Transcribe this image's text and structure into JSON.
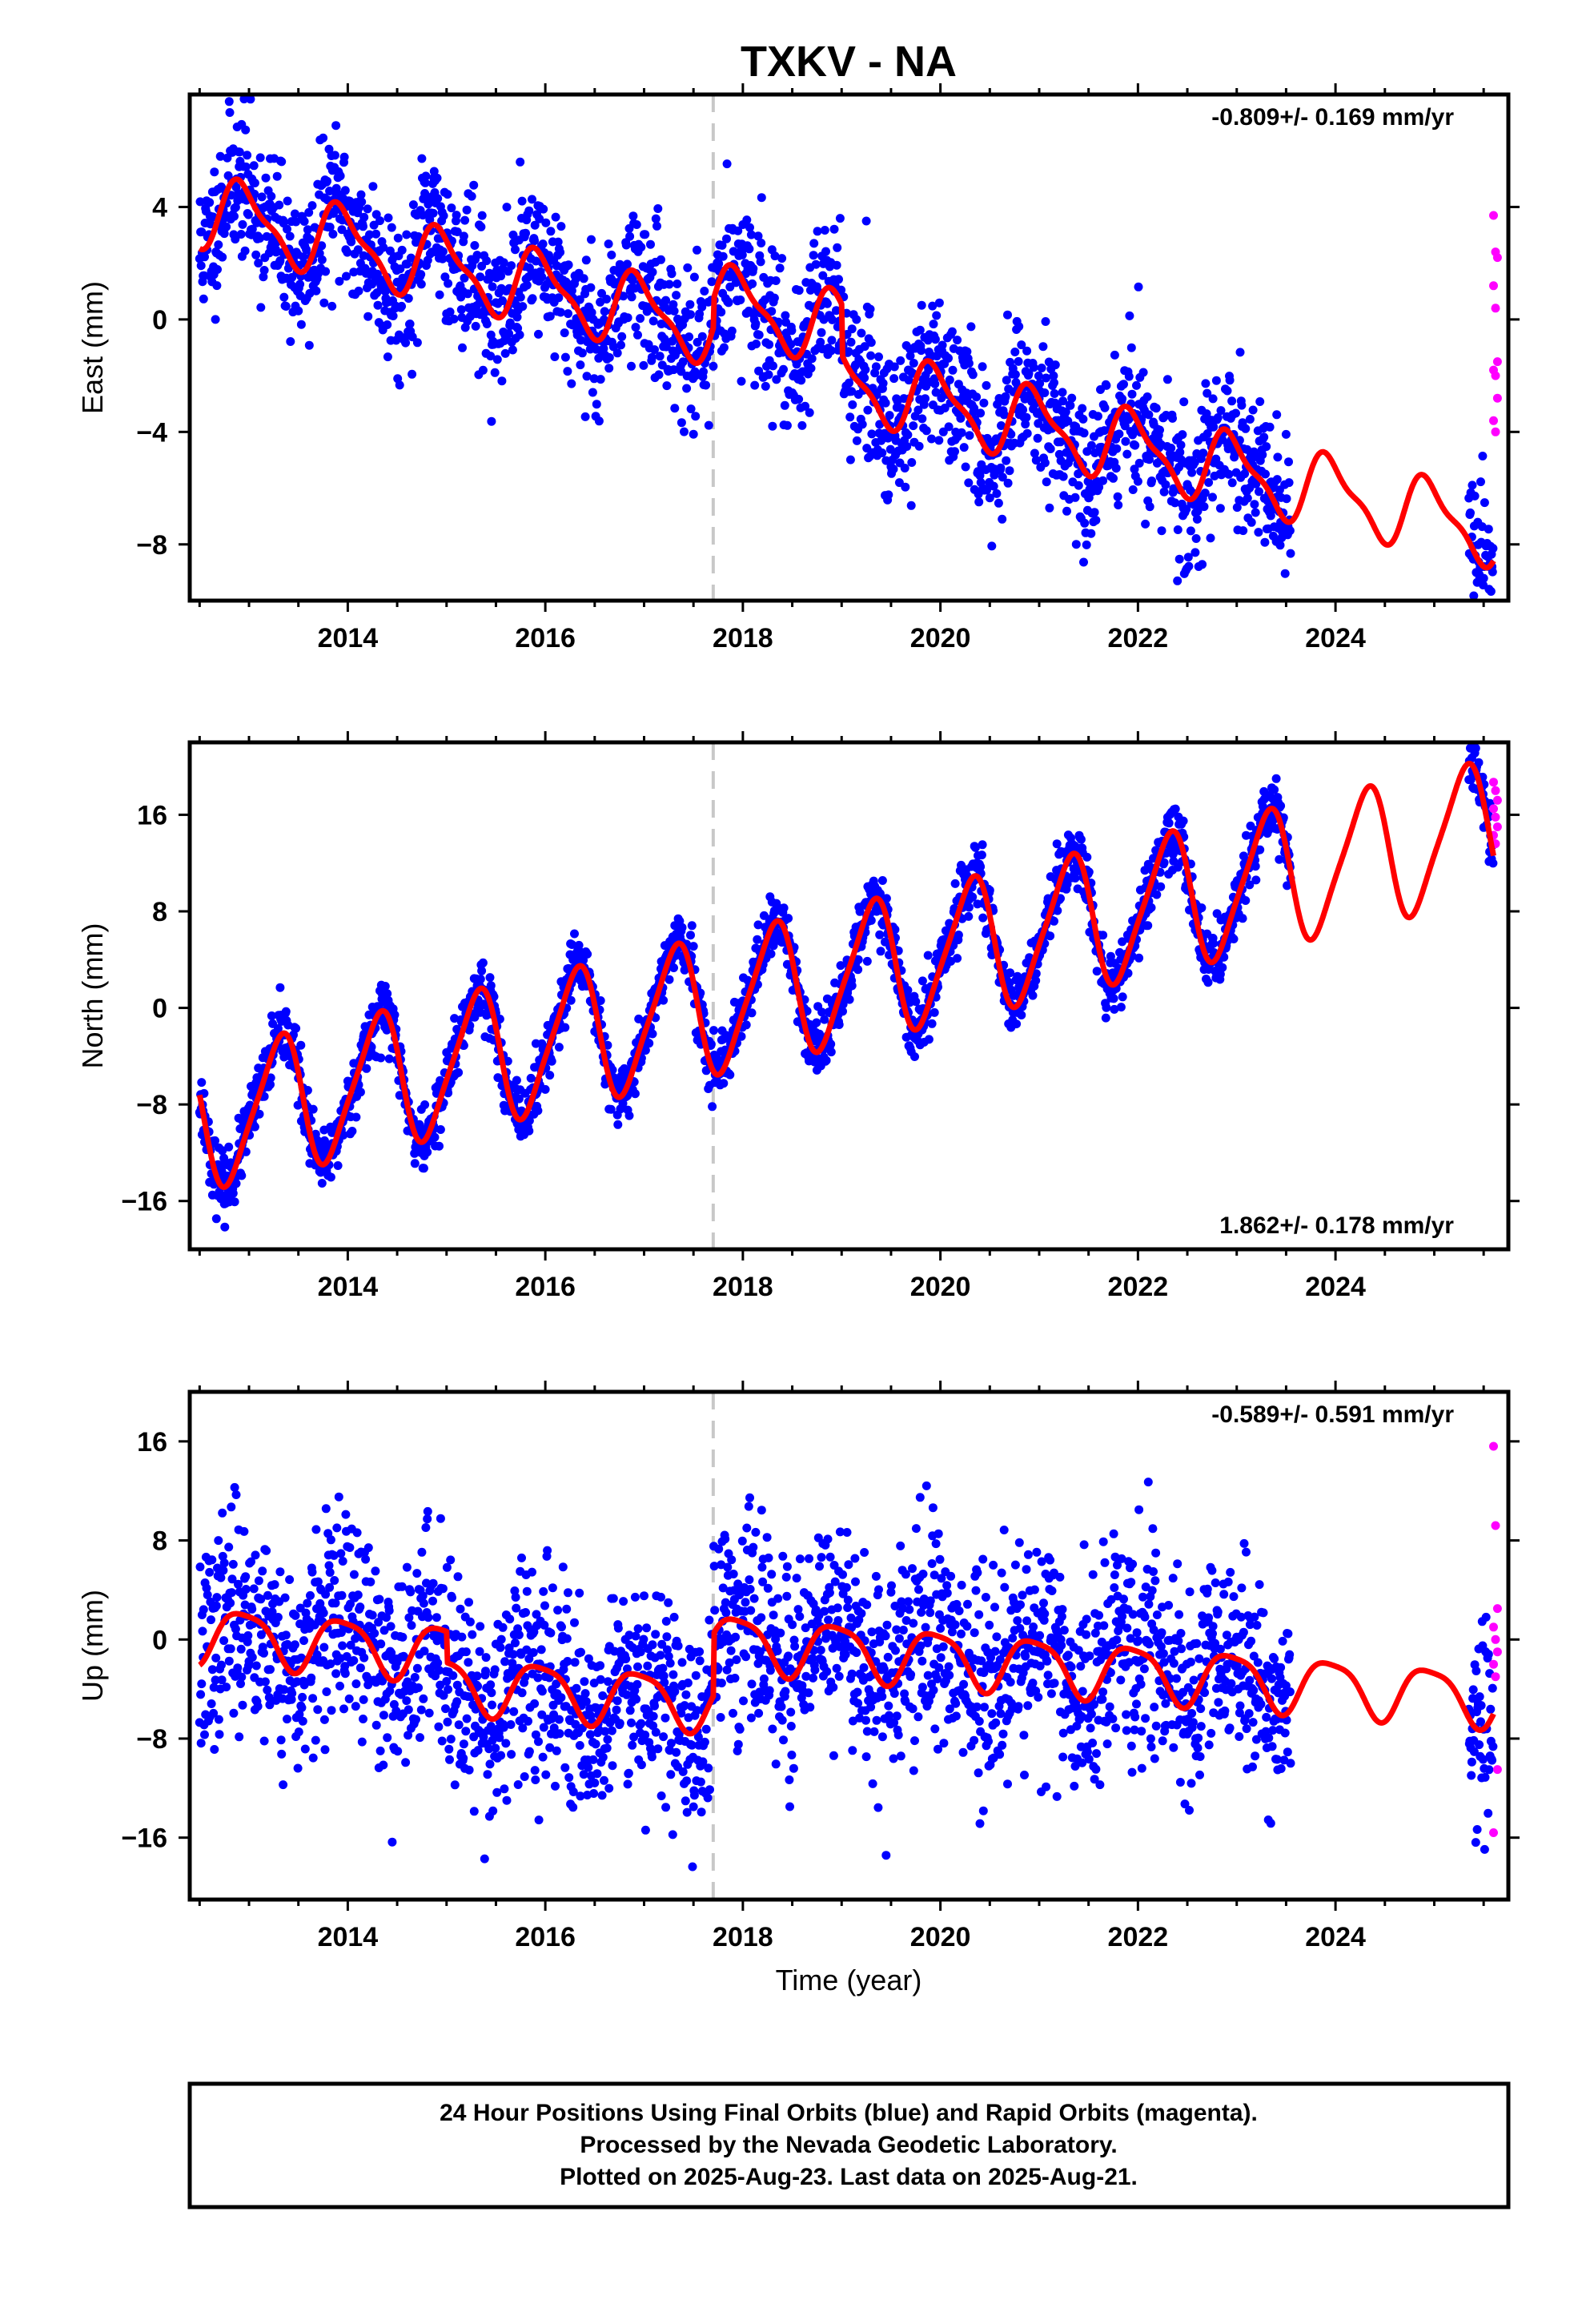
{
  "title": "TXKV - NA",
  "xlabel": "Time (year)",
  "colors": {
    "final_orbits": "#0000ff",
    "rapid_orbits": "#ff00ff",
    "model": "#ff0000",
    "equipment_change": "#c8c8c8"
  },
  "footer": {
    "line1": "24 Hour Positions Using Final Orbits (blue) and Rapid Orbits (magenta).",
    "line2": "Processed by the Nevada Geodetic Laboratory.",
    "line3": "Plotted on 2025-Aug-23. Last data on 2025-Aug-21."
  },
  "chart_data": [
    {
      "type": "scatter",
      "component": "east",
      "ylabel": "East (mm)",
      "rate": "-0.809+/- 0.169 mm/yr",
      "rate_position": "top-right",
      "xlim": [
        2012.4,
        2025.75
      ],
      "ylim": [
        -10,
        8
      ],
      "xticks": [
        2014,
        2016,
        2018,
        2020,
        2022,
        2024
      ],
      "xtick_labels": [
        "2014",
        "2016",
        "2018",
        "2020",
        "2022",
        "2024"
      ],
      "yticks": [
        4,
        0,
        -4,
        -8
      ],
      "ytick_labels": [
        "4",
        "0",
        "−4",
        "−8"
      ],
      "equipment_change_year": 2017.7,
      "model": {
        "offset": 3.9,
        "slope": -0.809,
        "ref_year": 2012.5,
        "annual_amp": 1.2,
        "annual_phase": 0.7,
        "semiannual_amp": 0.4,
        "semiannual_phase": 0.2,
        "shifts": [
          {
            "year": 2017.7,
            "value": 1.0
          },
          {
            "year": 2019.0,
            "value": -1.8
          }
        ],
        "x_range": [
          2012.5,
          2025.6
        ]
      },
      "final_orbits": {
        "x_range": [
          2012.5,
          2023.55
        ],
        "extra_x_range": [
          2025.35,
          2025.6
        ],
        "scatter_sd": 1.3,
        "seed": 11
      },
      "rapid_orbits": {
        "x_range": [
          2025.6,
          2025.64
        ],
        "y_values": [
          3.7,
          2.4,
          2.2,
          1.2,
          0.4,
          -1.5,
          -1.8,
          -2.0,
          -2.8,
          -3.6,
          -4.0
        ]
      }
    },
    {
      "type": "scatter",
      "component": "north",
      "ylabel": "North (mm)",
      "rate": "1.862+/- 0.178 mm/yr",
      "rate_position": "bottom-right",
      "xlim": [
        2012.4,
        2025.75
      ],
      "ylim": [
        -20,
        22
      ],
      "xticks": [
        2014,
        2016,
        2018,
        2020,
        2022,
        2024
      ],
      "xtick_labels": [
        "2014",
        "2016",
        "2018",
        "2020",
        "2022",
        "2024"
      ],
      "yticks": [
        16,
        8,
        0,
        -8,
        -16
      ],
      "ytick_labels": [
        "16",
        "8",
        "0",
        "−8",
        "−16"
      ],
      "equipment_change_year": 2017.7,
      "model": {
        "offset": -9.5,
        "slope": 1.862,
        "ref_year": 2012.5,
        "annual_amp": 5.5,
        "annual_phase": 0.05,
        "semiannual_amp": 1.0,
        "semiannual_phase": 0.3,
        "shifts": [],
        "x_range": [
          2012.5,
          2025.6
        ]
      },
      "final_orbits": {
        "x_range": [
          2012.5,
          2023.55
        ],
        "extra_x_range": [
          2025.35,
          2025.6
        ],
        "scatter_sd": 1.3,
        "seed": 23
      },
      "rapid_orbits": {
        "x_range": [
          2025.6,
          2025.64
        ],
        "y_values": [
          18.7,
          18.0,
          17.2,
          16.5,
          15.8,
          15.0,
          14.3,
          13.6
        ]
      }
    },
    {
      "type": "scatter",
      "component": "up",
      "ylabel": "Up (mm)",
      "rate": "-0.589+/- 0.591 mm/yr",
      "rate_position": "top-right",
      "xlim": [
        2012.4,
        2025.75
      ],
      "ylim": [
        -21,
        20
      ],
      "xticks": [
        2014,
        2016,
        2018,
        2020,
        2022,
        2024
      ],
      "xtick_labels": [
        "2014",
        "2016",
        "2018",
        "2020",
        "2022",
        "2024"
      ],
      "yticks": [
        16,
        8,
        0,
        -8,
        -16
      ],
      "ytick_labels": [
        "16",
        "8",
        "0",
        "−8",
        "−16"
      ],
      "equipment_change_year": 2017.7,
      "model": {
        "offset": 0.5,
        "slope": -0.589,
        "ref_year": 2012.5,
        "annual_amp": 2.2,
        "annual_phase": 0.7,
        "semiannual_amp": 0.5,
        "semiannual_phase": 0.1,
        "shifts": [
          {
            "year": 2015.0,
            "value": -2.5
          },
          {
            "year": 2017.7,
            "value": 5.0
          }
        ],
        "x_range": [
          2012.5,
          2025.6
        ]
      },
      "final_orbits": {
        "x_range": [
          2012.5,
          2023.55
        ],
        "extra_x_range": [
          2025.35,
          2025.6
        ],
        "scatter_sd": 4.2,
        "seed": 37
      },
      "rapid_orbits": {
        "x_range": [
          2025.6,
          2025.64
        ],
        "y_values": [
          15.6,
          9.2,
          2.5,
          1.0,
          0.0,
          -1.0,
          -2.0,
          -3.0,
          -10.5,
          -15.6
        ]
      }
    }
  ]
}
